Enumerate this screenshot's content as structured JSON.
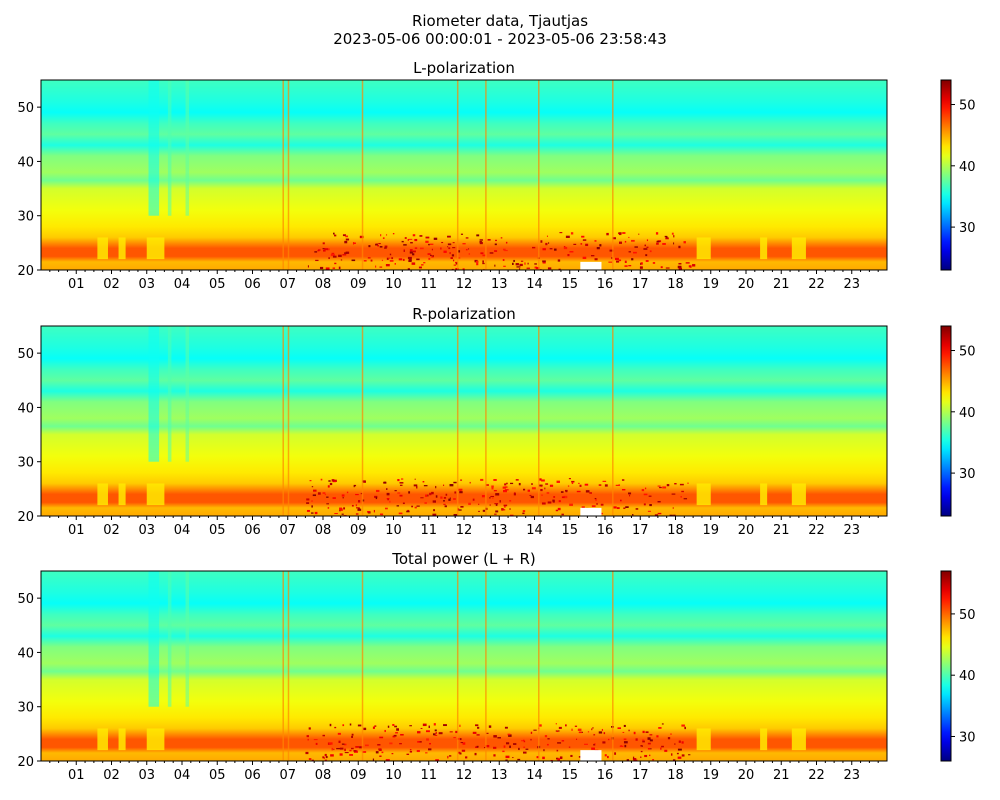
{
  "figure": {
    "title": "Riometer data, Tjautjas",
    "subtitle": "2023-05-06 00:00:01 - 2023-05-06 23:58:43"
  },
  "chart_data": [
    {
      "type": "heatmap",
      "title": "L-polarization",
      "xlabel": "",
      "ylabel": "",
      "x_range_hours": [
        0,
        24
      ],
      "ylim": [
        20,
        55
      ],
      "y_ticks": [
        20,
        30,
        40,
        50
      ],
      "x_tick_labels": [
        "01",
        "02",
        "03",
        "04",
        "05",
        "06",
        "07",
        "08",
        "09",
        "10",
        "11",
        "12",
        "13",
        "14",
        "15",
        "16",
        "17",
        "18",
        "19",
        "20",
        "21",
        "22",
        "23"
      ],
      "colorbar": {
        "range": [
          23,
          54
        ],
        "ticks": [
          30,
          40,
          50
        ]
      },
      "colormap": "jet",
      "grid": false,
      "features": {
        "low_band_y": [
          22,
          26
        ],
        "low_band_value": 48,
        "disturbed_hours": [
          7.5,
          18.5
        ],
        "saturated_patches": [
          {
            "hour_start": 15.3,
            "hour_end": 15.9,
            "y_start": 20,
            "y_end": 21.5
          }
        ]
      }
    },
    {
      "type": "heatmap",
      "title": "R-polarization",
      "xlabel": "",
      "ylabel": "",
      "x_range_hours": [
        0,
        24
      ],
      "ylim": [
        20,
        55
      ],
      "y_ticks": [
        20,
        30,
        40,
        50
      ],
      "x_tick_labels": [
        "01",
        "02",
        "03",
        "04",
        "05",
        "06",
        "07",
        "08",
        "09",
        "10",
        "11",
        "12",
        "13",
        "14",
        "15",
        "16",
        "17",
        "18",
        "19",
        "20",
        "21",
        "22",
        "23"
      ],
      "colorbar": {
        "range": [
          23,
          54
        ],
        "ticks": [
          30,
          40,
          50
        ]
      },
      "colormap": "jet",
      "grid": false,
      "features": {
        "low_band_y": [
          22,
          26
        ],
        "low_band_value": 48,
        "disturbed_hours": [
          7.5,
          18.5
        ],
        "saturated_patches": [
          {
            "hour_start": 15.3,
            "hour_end": 15.9,
            "y_start": 20,
            "y_end": 21.5
          }
        ]
      }
    },
    {
      "type": "heatmap",
      "title": "Total power (L + R)",
      "xlabel": "",
      "ylabel": "",
      "x_range_hours": [
        0,
        24
      ],
      "ylim": [
        20,
        55
      ],
      "y_ticks": [
        20,
        30,
        40,
        50
      ],
      "x_tick_labels": [
        "01",
        "02",
        "03",
        "04",
        "05",
        "06",
        "07",
        "08",
        "09",
        "10",
        "11",
        "12",
        "13",
        "14",
        "15",
        "16",
        "17",
        "18",
        "19",
        "20",
        "21",
        "22",
        "23"
      ],
      "colorbar": {
        "range": [
          26,
          57
        ],
        "ticks": [
          30,
          40,
          50
        ]
      },
      "colormap": "jet",
      "grid": false,
      "features": {
        "low_band_y": [
          22,
          26
        ],
        "low_band_value": 51,
        "disturbed_hours": [
          7.5,
          18.5
        ],
        "saturated_patches": [
          {
            "hour_start": 15.3,
            "hour_end": 15.9,
            "y_start": 20,
            "y_end": 22
          }
        ]
      }
    }
  ]
}
